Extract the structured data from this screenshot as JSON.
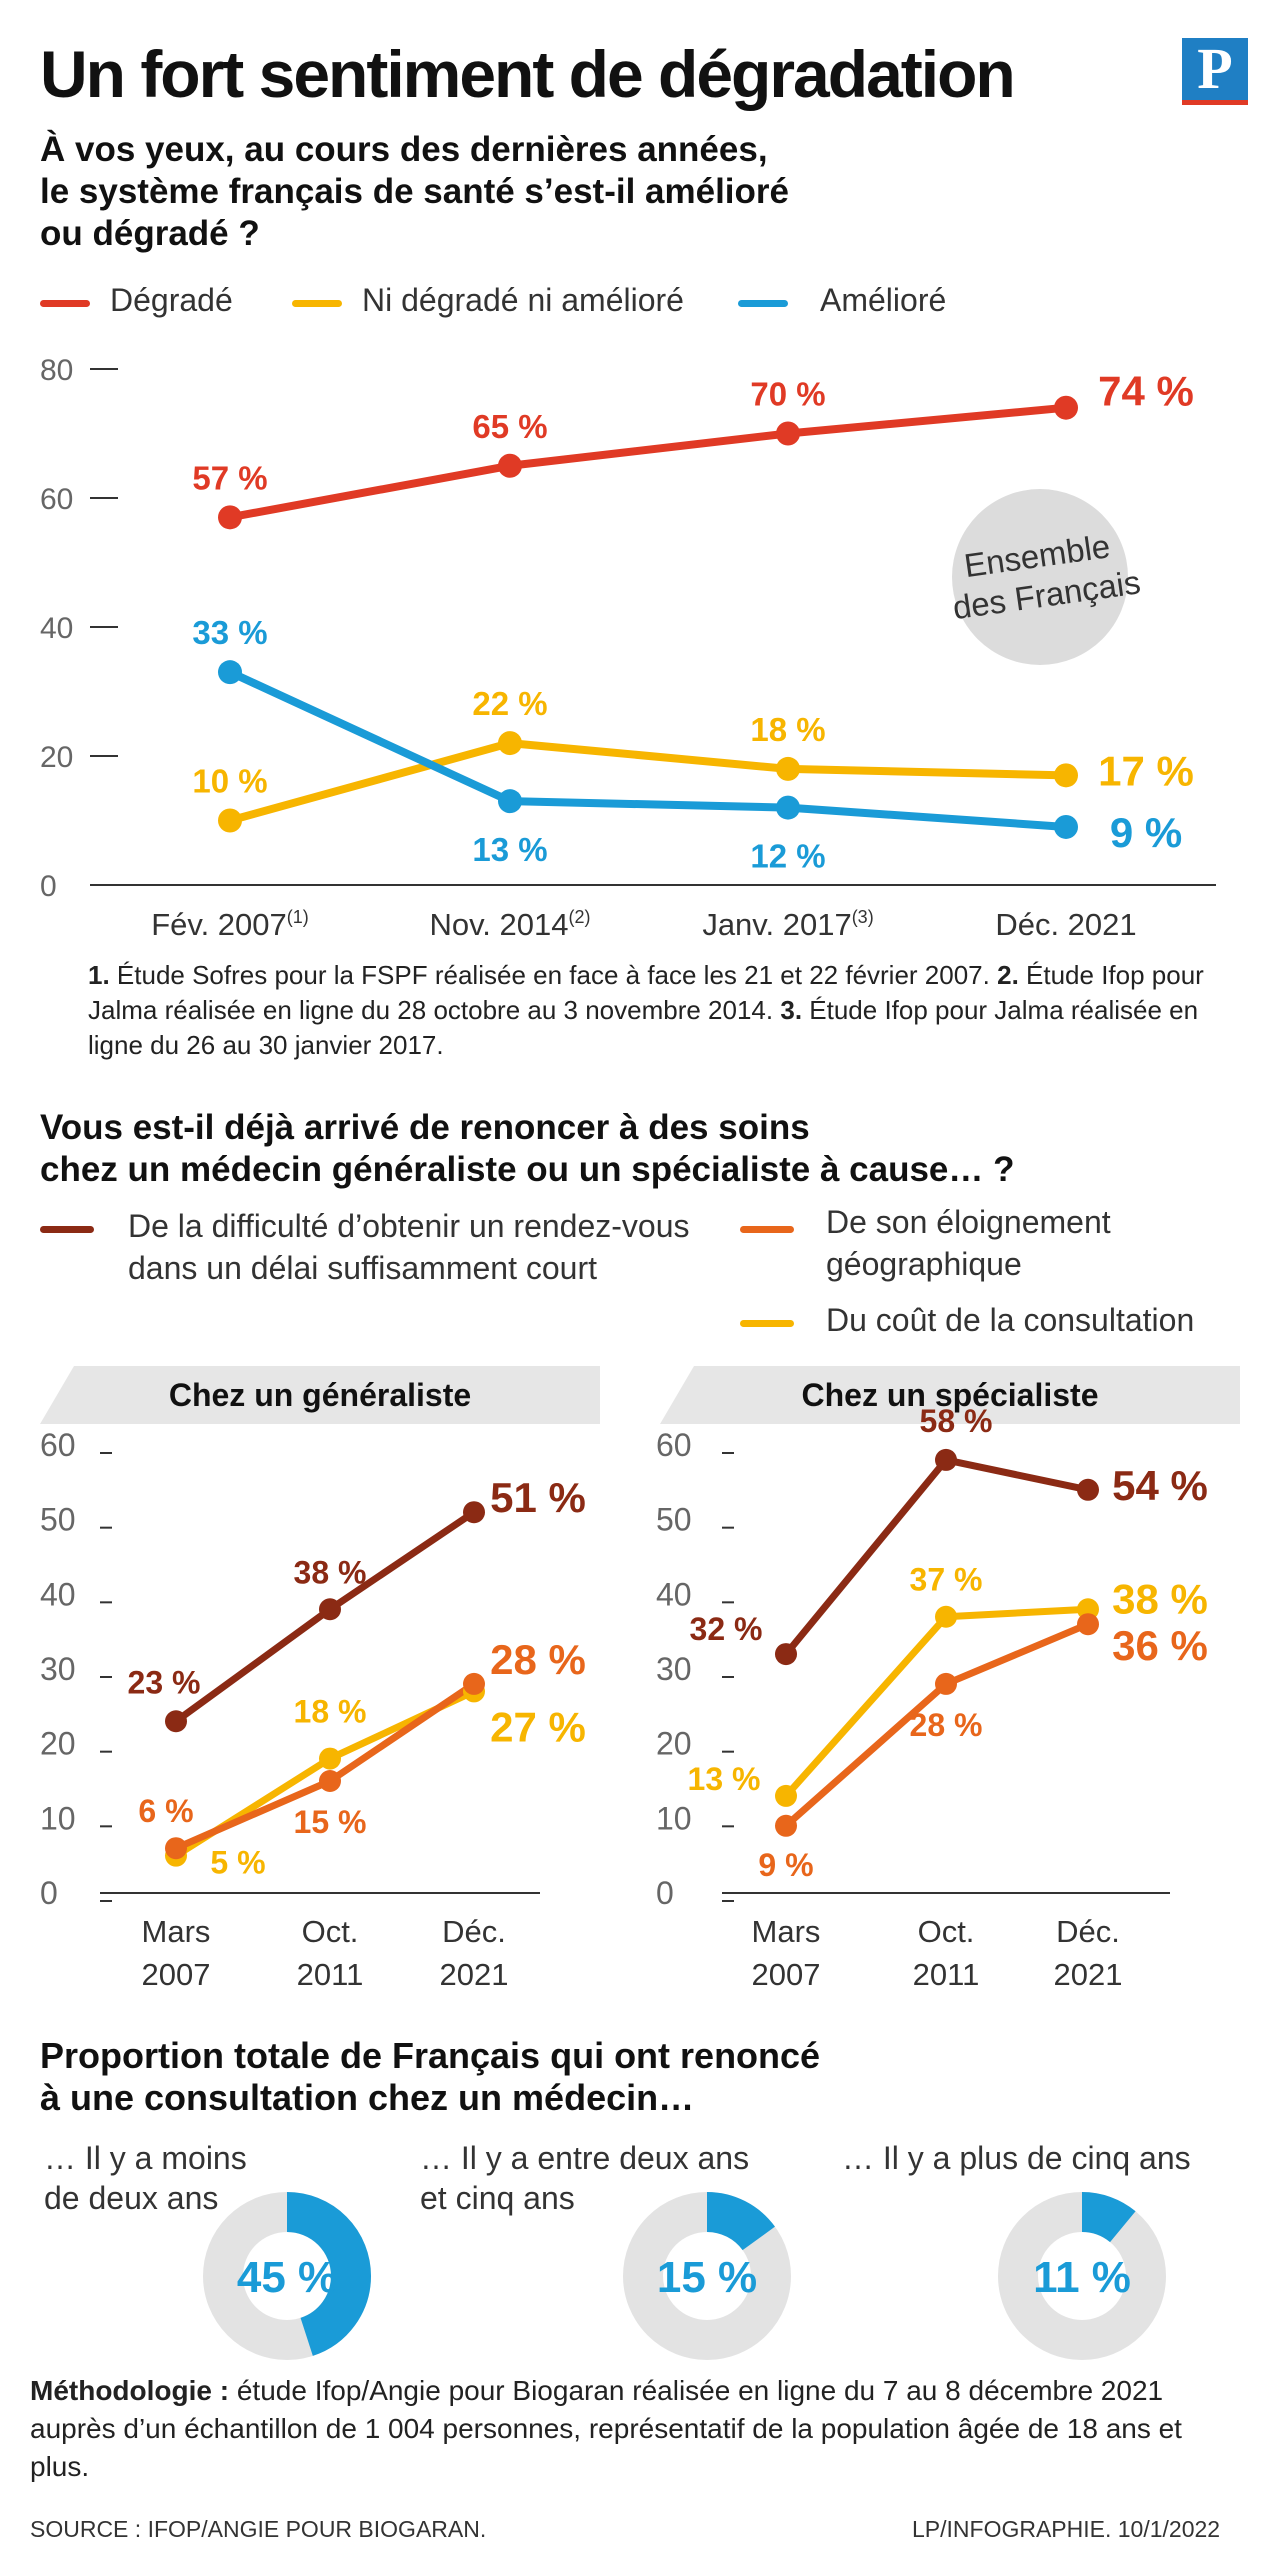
{
  "header": {
    "title": "Un fort sentiment de dégradation",
    "logo": "P"
  },
  "section1": {
    "question_line1": "À vos yeux, au cours des dernières années,",
    "question_line2": "le système français de santé s’est-il amélioré",
    "question_line3": "ou dégradé ?",
    "badge_line1": "Ensemble",
    "badge_line2": "des Français",
    "notes": [
      {
        "num": "1.",
        "text": "Étude Sofres pour la FSPF réalisée en face à face les 21 et 22 février 2007."
      },
      {
        "num": "2.",
        "text": "Étude Ifop pour Jalma réalisée en ligne du 28 octobre au 3 novembre 2014."
      },
      {
        "num": "3.",
        "text": "Étude Ifop pour Jalma réalisée en ligne du 26 au 30 janvier 2017."
      }
    ]
  },
  "section2": {
    "question_line1": "Vous est-il déjà arrivé de renoncer à des soins",
    "question_line2": "chez un médecin généraliste ou un spécialiste à cause… ?",
    "legend": {
      "delai_line1": "De la difficulté d’obtenir un rendez-vous",
      "delai_line2": "dans un délai suffisamment court",
      "eloign_line1": "De son éloignement",
      "eloign_line2": "géographique",
      "cout": "Du coût de la consultation"
    }
  },
  "section3": {
    "title_line1": "Proportion totale de Français qui ont renoncé",
    "title_line2": "à une consultation chez un médecin…",
    "donuts": [
      {
        "label_line1": "… Il y a moins",
        "label_line2": "de deux ans",
        "value": 45,
        "text": "45 %"
      },
      {
        "label_line1": "… Il y a entre deux ans",
        "label_line2": "et cinq ans",
        "value": 15,
        "text": "15 %"
      },
      {
        "label_line1": "… Il y a plus de cinq ans",
        "label_line2": "",
        "value": 11,
        "text": "11 %"
      }
    ]
  },
  "footer": {
    "methodology_label": "Méthodologie :",
    "methodology_text": " étude Ifop/Angie pour Biogaran réalisée en ligne du 7 au 8 décembre 2021 auprès d’un échantillon de 1 004 personnes, représentatif de la population âgée de 18 ans et plus.",
    "source": "SOURCE : IFOP/ANGIE POUR BIOGARAN.",
    "credit": "LP/INFOGRAPHIE.  10/1/2022"
  },
  "colors": {
    "red": "#e03a25",
    "yellow": "#f7b500",
    "blue": "#1a9bd7",
    "darkred": "#8b2a14",
    "orange": "#e8661b",
    "donut_bg": "#e3e3e3",
    "badge_bg": "#dcdcdc"
  },
  "chart_data": [
    {
      "type": "line",
      "categories": [
        "Fév. 2007",
        "Nov. 2014",
        "Janv. 2017",
        "Déc. 2021"
      ],
      "category_sups": [
        "(1)",
        "(2)",
        "(3)",
        ""
      ],
      "ylim": [
        0,
        80
      ],
      "yticks": [
        "0",
        "20",
        "40",
        "60",
        "80"
      ],
      "legend_position": "top",
      "series": [
        {
          "name": "Dégradé",
          "values": [
            57,
            65,
            70,
            74
          ],
          "labels": [
            "57 %",
            "65 %",
            "70 %",
            "74 %"
          ],
          "color": "#e03a25"
        },
        {
          "name": "Ni dégradé ni amélioré",
          "values": [
            10,
            22,
            18,
            17
          ],
          "labels": [
            "10 %",
            "22 %",
            "18 %",
            "17 %"
          ],
          "color": "#f7b500"
        },
        {
          "name": "Amélioré",
          "values": [
            33,
            13,
            12,
            9
          ],
          "labels": [
            "33 %",
            "13 %",
            "12 %",
            "9 %"
          ],
          "color": "#1a9bd7"
        }
      ]
    },
    {
      "type": "line",
      "title": "Chez un généraliste",
      "categories": [
        "Mars 2007",
        "Oct. 2011",
        "Déc. 2021"
      ],
      "ylim": [
        0,
        60
      ],
      "yticks": [
        "0",
        "10",
        "20",
        "30",
        "40",
        "50",
        "60"
      ],
      "series": [
        {
          "values": [
            23,
            38,
            51
          ],
          "labels": [
            "23 %",
            "38 %",
            "51 %"
          ],
          "color": "#8b2a14"
        },
        {
          "values": [
            5,
            18,
            27
          ],
          "labels": [
            "5 %",
            "18 %",
            "27 %"
          ],
          "color": "#f7b500"
        },
        {
          "values": [
            6,
            15,
            28
          ],
          "labels": [
            "6 %",
            "15 %",
            "28 %"
          ],
          "color": "#e8661b"
        }
      ]
    },
    {
      "type": "line",
      "title": "Chez un spécialiste",
      "categories": [
        "Mars 2007",
        "Oct. 2011",
        "Déc. 2021"
      ],
      "ylim": [
        0,
        60
      ],
      "yticks": [
        "0",
        "10",
        "20",
        "30",
        "40",
        "50",
        "60"
      ],
      "series": [
        {
          "values": [
            32,
            58,
            54
          ],
          "labels": [
            "32 %",
            "58 %",
            "54 %"
          ],
          "color": "#8b2a14"
        },
        {
          "values": [
            13,
            37,
            38
          ],
          "labels": [
            "13 %",
            "37 %",
            "38 %"
          ],
          "color": "#f7b500"
        },
        {
          "values": [
            9,
            28,
            36
          ],
          "labels": [
            "9 %",
            "28 %",
            "36 %"
          ],
          "color": "#e8661b"
        }
      ]
    }
  ]
}
